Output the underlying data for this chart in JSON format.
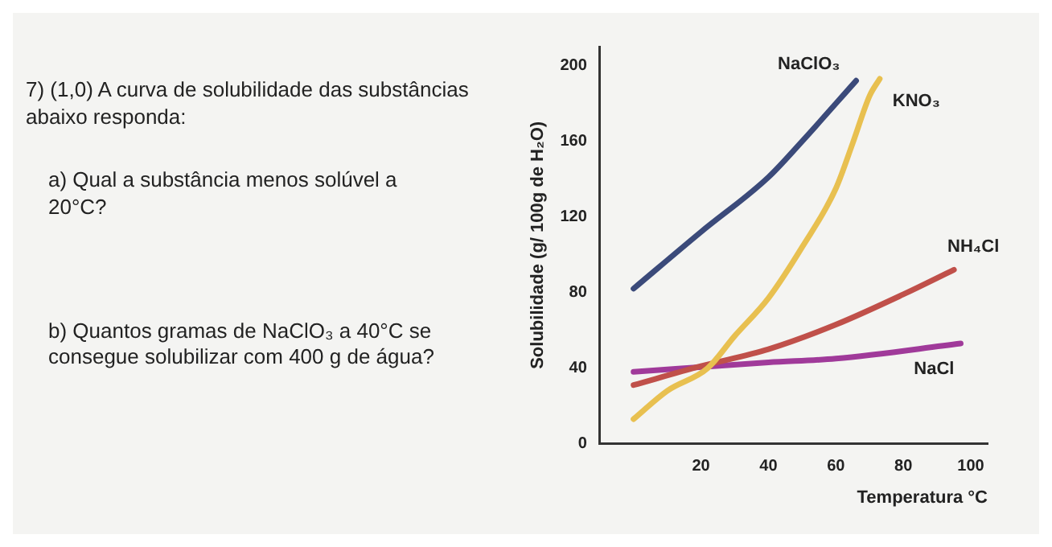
{
  "chart_data": {
    "type": "line",
    "title": "7) (1,0) A curva de solubilidade das substâncias abaixo responda:",
    "annotations": [
      "a) Qual a substância menos solúvel a 20°C?",
      "b) Quantos gramas de NaClO₃ a 40°C se consegue solubilizar com 400 g de água?"
    ],
    "xlabel": "Temperatura °C",
    "ylabel": "Solubilidade (g/ 100g de H₂O)",
    "xlim": [
      -10,
      105
    ],
    "xticks": [
      20,
      40,
      60,
      80,
      100
    ],
    "ylim": [
      0,
      210
    ],
    "yticks": [
      0,
      40,
      80,
      120,
      160,
      200
    ],
    "grid": false,
    "legend": false,
    "marker": "none",
    "line_style": "solid",
    "series": [
      {
        "name": "NaClO₃",
        "color": "#3b4a7a",
        "x": [
          0,
          20,
          40,
          50,
          66
        ],
        "values": [
          82,
          112,
          141,
          160,
          192
        ]
      },
      {
        "name": "KNO₃",
        "color": "#e8c050",
        "x": [
          0,
          10,
          22,
          30,
          40,
          50,
          60,
          65,
          70,
          73
        ],
        "values": [
          13,
          28,
          40,
          57,
          77,
          104,
          135,
          159,
          184,
          193
        ]
      },
      {
        "name": "NH₄Cl",
        "color": "#c0504a",
        "x": [
          0,
          20,
          40,
          60,
          80,
          95
        ],
        "values": [
          31,
          41,
          50,
          63,
          79,
          92
        ]
      },
      {
        "name": "NaCl",
        "color": "#a03a9a",
        "x": [
          0,
          40,
          60,
          97
        ],
        "values": [
          38,
          43,
          45,
          53
        ]
      }
    ]
  }
}
